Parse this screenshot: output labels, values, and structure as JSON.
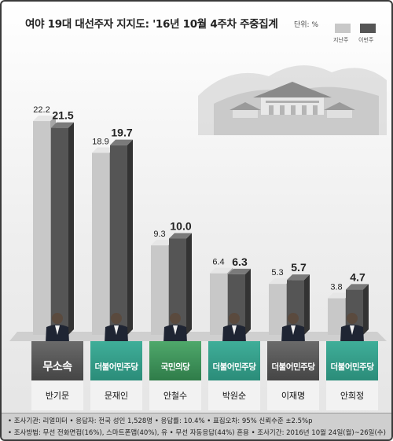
{
  "title": "여야 19대 대선주자 지지도: '16년 10월 4주차 주중집계",
  "unit": "단위: %",
  "legend": [
    {
      "label": "지난주",
      "color": "#c8c8c8"
    },
    {
      "label": "이번주",
      "color": "#555555"
    }
  ],
  "chart_data": {
    "type": "bar",
    "categories": [
      "반기문",
      "문재인",
      "안철수",
      "박원순",
      "이재명",
      "안희정"
    ],
    "series": [
      {
        "name": "지난주",
        "values": [
          22.2,
          18.9,
          9.3,
          6.4,
          5.3,
          3.8
        ]
      },
      {
        "name": "이번주",
        "values": [
          21.5,
          19.7,
          10.0,
          6.3,
          5.7,
          4.7
        ]
      }
    ],
    "ylim": [
      0,
      24
    ],
    "title": "여야 19대 대선주자 지지도: '16년 10월 4주차 주중집계",
    "xlabel": "",
    "ylabel": "",
    "legend_position": "top-right",
    "grid": false
  },
  "candidates": [
    {
      "name": "반기문",
      "party": "무소속",
      "party_style": "gray"
    },
    {
      "name": "문재인",
      "party": "더불어민주당",
      "party_style": "green"
    },
    {
      "name": "안철수",
      "party": "국민의당",
      "party_style": "people"
    },
    {
      "name": "박원순",
      "party": "더불어민주당",
      "party_style": "green"
    },
    {
      "name": "이재명",
      "party": "더불어민주당",
      "party_style": "gray"
    },
    {
      "name": "안희정",
      "party": "더불어민주당",
      "party_style": "green"
    }
  ],
  "footer": {
    "line1": "• 조사기관: 리얼미터 • 응답자: 전국 성인 1,528명 • 응답률: 10.4% • 표집오차: 95% 신뢰수준 ±2.5%p",
    "line2": "• 조사방법: 무선 전화면접(16%), 스마트폰앱(40%), 유 • 무선 자동응답(44%) 혼용 • 조사기간: 2016년 10월 24일(월)~26일(수)"
  },
  "colors": {
    "prev_front": "#c8c8c8",
    "prev_side": "#a6a6a6",
    "prev_top": "#e6e6e6",
    "curr_front": "#555555",
    "curr_side": "#333333",
    "curr_top": "#7a7a7a"
  }
}
